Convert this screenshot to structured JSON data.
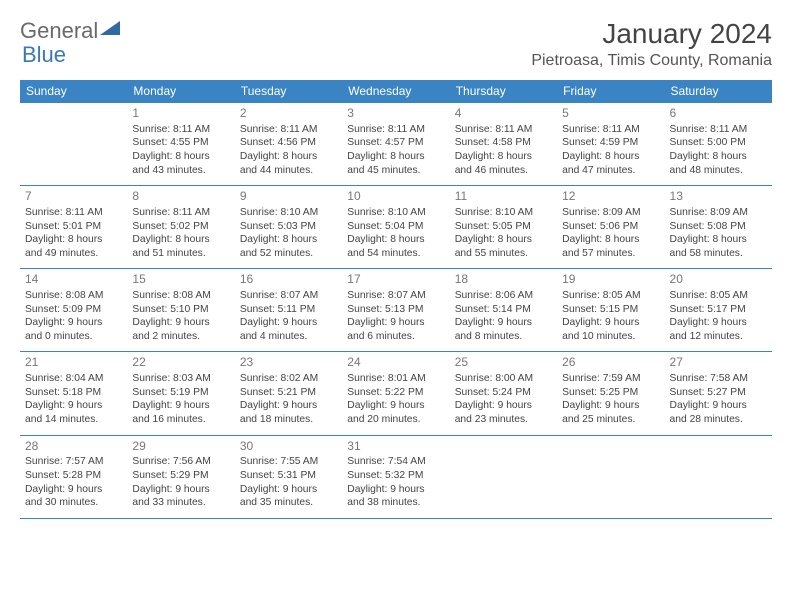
{
  "logo": {
    "part1": "General",
    "part2": "Blue"
  },
  "logo_colors": {
    "general": "#6a6a6a",
    "blue": "#3a7ab5",
    "triangle": "#2f6aa3"
  },
  "title": "January 2024",
  "location": "Pietroasa, Timis County, Romania",
  "header_bg": "#3a84c4",
  "header_text_color": "#ffffff",
  "border_color": "#3a84c4",
  "text_color": "#444444",
  "daynum_color": "#777777",
  "background": "#ffffff",
  "day_headers": [
    "Sunday",
    "Monday",
    "Tuesday",
    "Wednesday",
    "Thursday",
    "Friday",
    "Saturday"
  ],
  "weeks": [
    [
      null,
      {
        "n": "1",
        "sr": "Sunrise: 8:11 AM",
        "ss": "Sunset: 4:55 PM",
        "d1": "Daylight: 8 hours",
        "d2": "and 43 minutes."
      },
      {
        "n": "2",
        "sr": "Sunrise: 8:11 AM",
        "ss": "Sunset: 4:56 PM",
        "d1": "Daylight: 8 hours",
        "d2": "and 44 minutes."
      },
      {
        "n": "3",
        "sr": "Sunrise: 8:11 AM",
        "ss": "Sunset: 4:57 PM",
        "d1": "Daylight: 8 hours",
        "d2": "and 45 minutes."
      },
      {
        "n": "4",
        "sr": "Sunrise: 8:11 AM",
        "ss": "Sunset: 4:58 PM",
        "d1": "Daylight: 8 hours",
        "d2": "and 46 minutes."
      },
      {
        "n": "5",
        "sr": "Sunrise: 8:11 AM",
        "ss": "Sunset: 4:59 PM",
        "d1": "Daylight: 8 hours",
        "d2": "and 47 minutes."
      },
      {
        "n": "6",
        "sr": "Sunrise: 8:11 AM",
        "ss": "Sunset: 5:00 PM",
        "d1": "Daylight: 8 hours",
        "d2": "and 48 minutes."
      }
    ],
    [
      {
        "n": "7",
        "sr": "Sunrise: 8:11 AM",
        "ss": "Sunset: 5:01 PM",
        "d1": "Daylight: 8 hours",
        "d2": "and 49 minutes."
      },
      {
        "n": "8",
        "sr": "Sunrise: 8:11 AM",
        "ss": "Sunset: 5:02 PM",
        "d1": "Daylight: 8 hours",
        "d2": "and 51 minutes."
      },
      {
        "n": "9",
        "sr": "Sunrise: 8:10 AM",
        "ss": "Sunset: 5:03 PM",
        "d1": "Daylight: 8 hours",
        "d2": "and 52 minutes."
      },
      {
        "n": "10",
        "sr": "Sunrise: 8:10 AM",
        "ss": "Sunset: 5:04 PM",
        "d1": "Daylight: 8 hours",
        "d2": "and 54 minutes."
      },
      {
        "n": "11",
        "sr": "Sunrise: 8:10 AM",
        "ss": "Sunset: 5:05 PM",
        "d1": "Daylight: 8 hours",
        "d2": "and 55 minutes."
      },
      {
        "n": "12",
        "sr": "Sunrise: 8:09 AM",
        "ss": "Sunset: 5:06 PM",
        "d1": "Daylight: 8 hours",
        "d2": "and 57 minutes."
      },
      {
        "n": "13",
        "sr": "Sunrise: 8:09 AM",
        "ss": "Sunset: 5:08 PM",
        "d1": "Daylight: 8 hours",
        "d2": "and 58 minutes."
      }
    ],
    [
      {
        "n": "14",
        "sr": "Sunrise: 8:08 AM",
        "ss": "Sunset: 5:09 PM",
        "d1": "Daylight: 9 hours",
        "d2": "and 0 minutes."
      },
      {
        "n": "15",
        "sr": "Sunrise: 8:08 AM",
        "ss": "Sunset: 5:10 PM",
        "d1": "Daylight: 9 hours",
        "d2": "and 2 minutes."
      },
      {
        "n": "16",
        "sr": "Sunrise: 8:07 AM",
        "ss": "Sunset: 5:11 PM",
        "d1": "Daylight: 9 hours",
        "d2": "and 4 minutes."
      },
      {
        "n": "17",
        "sr": "Sunrise: 8:07 AM",
        "ss": "Sunset: 5:13 PM",
        "d1": "Daylight: 9 hours",
        "d2": "and 6 minutes."
      },
      {
        "n": "18",
        "sr": "Sunrise: 8:06 AM",
        "ss": "Sunset: 5:14 PM",
        "d1": "Daylight: 9 hours",
        "d2": "and 8 minutes."
      },
      {
        "n": "19",
        "sr": "Sunrise: 8:05 AM",
        "ss": "Sunset: 5:15 PM",
        "d1": "Daylight: 9 hours",
        "d2": "and 10 minutes."
      },
      {
        "n": "20",
        "sr": "Sunrise: 8:05 AM",
        "ss": "Sunset: 5:17 PM",
        "d1": "Daylight: 9 hours",
        "d2": "and 12 minutes."
      }
    ],
    [
      {
        "n": "21",
        "sr": "Sunrise: 8:04 AM",
        "ss": "Sunset: 5:18 PM",
        "d1": "Daylight: 9 hours",
        "d2": "and 14 minutes."
      },
      {
        "n": "22",
        "sr": "Sunrise: 8:03 AM",
        "ss": "Sunset: 5:19 PM",
        "d1": "Daylight: 9 hours",
        "d2": "and 16 minutes."
      },
      {
        "n": "23",
        "sr": "Sunrise: 8:02 AM",
        "ss": "Sunset: 5:21 PM",
        "d1": "Daylight: 9 hours",
        "d2": "and 18 minutes."
      },
      {
        "n": "24",
        "sr": "Sunrise: 8:01 AM",
        "ss": "Sunset: 5:22 PM",
        "d1": "Daylight: 9 hours",
        "d2": "and 20 minutes."
      },
      {
        "n": "25",
        "sr": "Sunrise: 8:00 AM",
        "ss": "Sunset: 5:24 PM",
        "d1": "Daylight: 9 hours",
        "d2": "and 23 minutes."
      },
      {
        "n": "26",
        "sr": "Sunrise: 7:59 AM",
        "ss": "Sunset: 5:25 PM",
        "d1": "Daylight: 9 hours",
        "d2": "and 25 minutes."
      },
      {
        "n": "27",
        "sr": "Sunrise: 7:58 AM",
        "ss": "Sunset: 5:27 PM",
        "d1": "Daylight: 9 hours",
        "d2": "and 28 minutes."
      }
    ],
    [
      {
        "n": "28",
        "sr": "Sunrise: 7:57 AM",
        "ss": "Sunset: 5:28 PM",
        "d1": "Daylight: 9 hours",
        "d2": "and 30 minutes."
      },
      {
        "n": "29",
        "sr": "Sunrise: 7:56 AM",
        "ss": "Sunset: 5:29 PM",
        "d1": "Daylight: 9 hours",
        "d2": "and 33 minutes."
      },
      {
        "n": "30",
        "sr": "Sunrise: 7:55 AM",
        "ss": "Sunset: 5:31 PM",
        "d1": "Daylight: 9 hours",
        "d2": "and 35 minutes."
      },
      {
        "n": "31",
        "sr": "Sunrise: 7:54 AM",
        "ss": "Sunset: 5:32 PM",
        "d1": "Daylight: 9 hours",
        "d2": "and 38 minutes."
      },
      null,
      null,
      null
    ]
  ]
}
